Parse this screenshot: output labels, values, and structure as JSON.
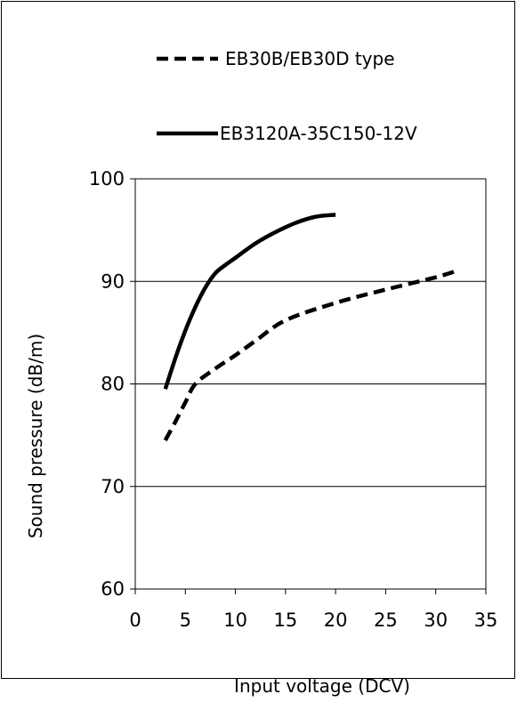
{
  "chart_data": {
    "type": "line",
    "title": "",
    "xlabel": "Input voltage (DCV)",
    "ylabel": "Sound pressure (dB/m)",
    "xlim": [
      0,
      35
    ],
    "ylim": [
      60,
      100
    ],
    "xticks": [
      0,
      5,
      10,
      15,
      20,
      25,
      30,
      35
    ],
    "yticks": [
      60,
      70,
      80,
      90,
      100
    ],
    "grid": "horizontal",
    "legend_position": "top",
    "series": [
      {
        "name": "EB30B/EB30D type",
        "style": "dashed",
        "color": "#000000",
        "x": [
          3,
          4,
          5,
          6,
          8,
          10,
          12,
          15,
          20,
          25,
          30,
          32
        ],
        "y": [
          74.5,
          76.3,
          78.2,
          80.0,
          81.5,
          82.8,
          84.2,
          86.2,
          87.9,
          89.2,
          90.4,
          91.0
        ]
      },
      {
        "name": "EB3120A-35C150-12V",
        "style": "solid",
        "color": "#000000",
        "x": [
          3,
          4,
          5,
          6,
          7,
          8,
          9,
          10,
          12,
          14,
          16,
          18,
          20
        ],
        "y": [
          79.5,
          82.5,
          85.2,
          87.5,
          89.4,
          90.8,
          91.6,
          92.3,
          93.7,
          94.8,
          95.7,
          96.3,
          96.5
        ]
      }
    ]
  }
}
